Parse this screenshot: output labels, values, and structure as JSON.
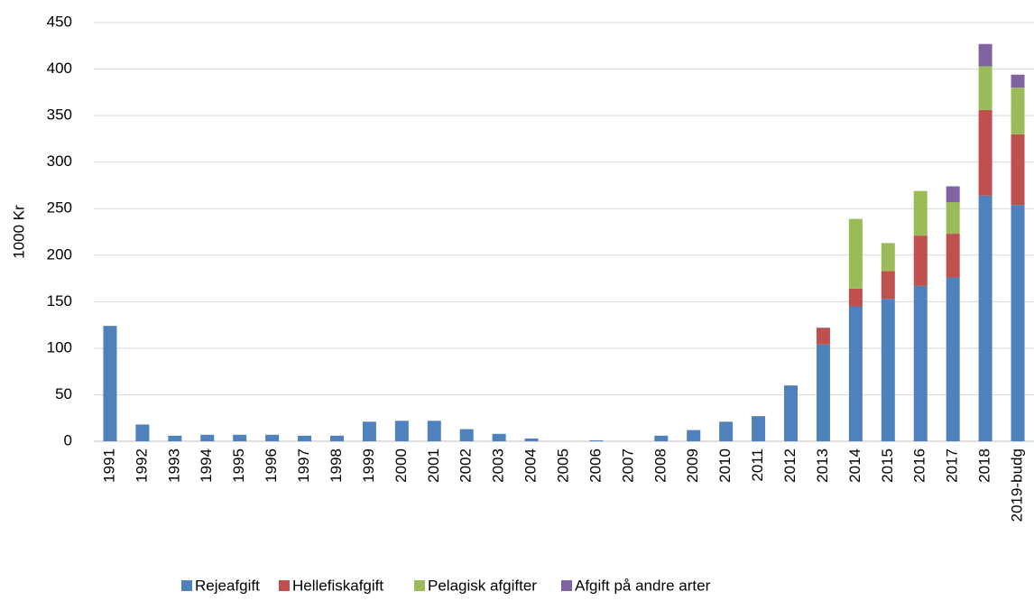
{
  "chart_data": {
    "type": "stacked-bar",
    "y_label": "1000 Kr",
    "categories": [
      "1991",
      "1992",
      "1993",
      "1994",
      "1995",
      "1996",
      "1997",
      "1998",
      "1999",
      "2000",
      "2001",
      "2002",
      "2003",
      "2004",
      "2005",
      "2006",
      "2007",
      "2008",
      "2009",
      "2010",
      "2011",
      "2012",
      "2013",
      "2014",
      "2015",
      "2016",
      "2017",
      "2018",
      "2019-budg"
    ],
    "series": [
      {
        "name": "Rejeafgift",
        "color": "#4f81bd",
        "values": [
          124,
          18,
          6,
          7,
          7,
          7,
          6,
          6,
          21,
          22,
          22,
          13,
          8,
          3,
          0,
          1,
          0,
          6,
          12,
          21,
          27,
          60,
          104,
          145,
          153,
          167,
          176,
          264,
          254
        ]
      },
      {
        "name": "Hellefiskafgift",
        "color": "#c0504d",
        "values": [
          0,
          0,
          0,
          0,
          0,
          0,
          0,
          0,
          0,
          0,
          0,
          0,
          0,
          0,
          0,
          0,
          0,
          0,
          0,
          0,
          0,
          0,
          18,
          19,
          30,
          54,
          47,
          92,
          76
        ]
      },
      {
        "name": "Pelagisk afgifter",
        "color": "#9bbb59",
        "values": [
          0,
          0,
          0,
          0,
          0,
          0,
          0,
          0,
          0,
          0,
          0,
          0,
          0,
          0,
          0,
          0,
          0,
          0,
          0,
          0,
          0,
          0,
          0,
          75,
          30,
          48,
          34,
          47,
          50
        ]
      },
      {
        "name": "Afgift på andre arter",
        "color": "#8064a2",
        "values": [
          0,
          0,
          0,
          0,
          0,
          0,
          0,
          0,
          0,
          0,
          0,
          0,
          0,
          0,
          0,
          0,
          0,
          0,
          0,
          0,
          0,
          0,
          0,
          0,
          0,
          0,
          17,
          24,
          14
        ]
      }
    ],
    "ylim": [
      0,
      450
    ],
    "yticks": [
      0,
      50,
      100,
      150,
      200,
      250,
      300,
      350,
      400,
      450
    ],
    "grid": true
  }
}
